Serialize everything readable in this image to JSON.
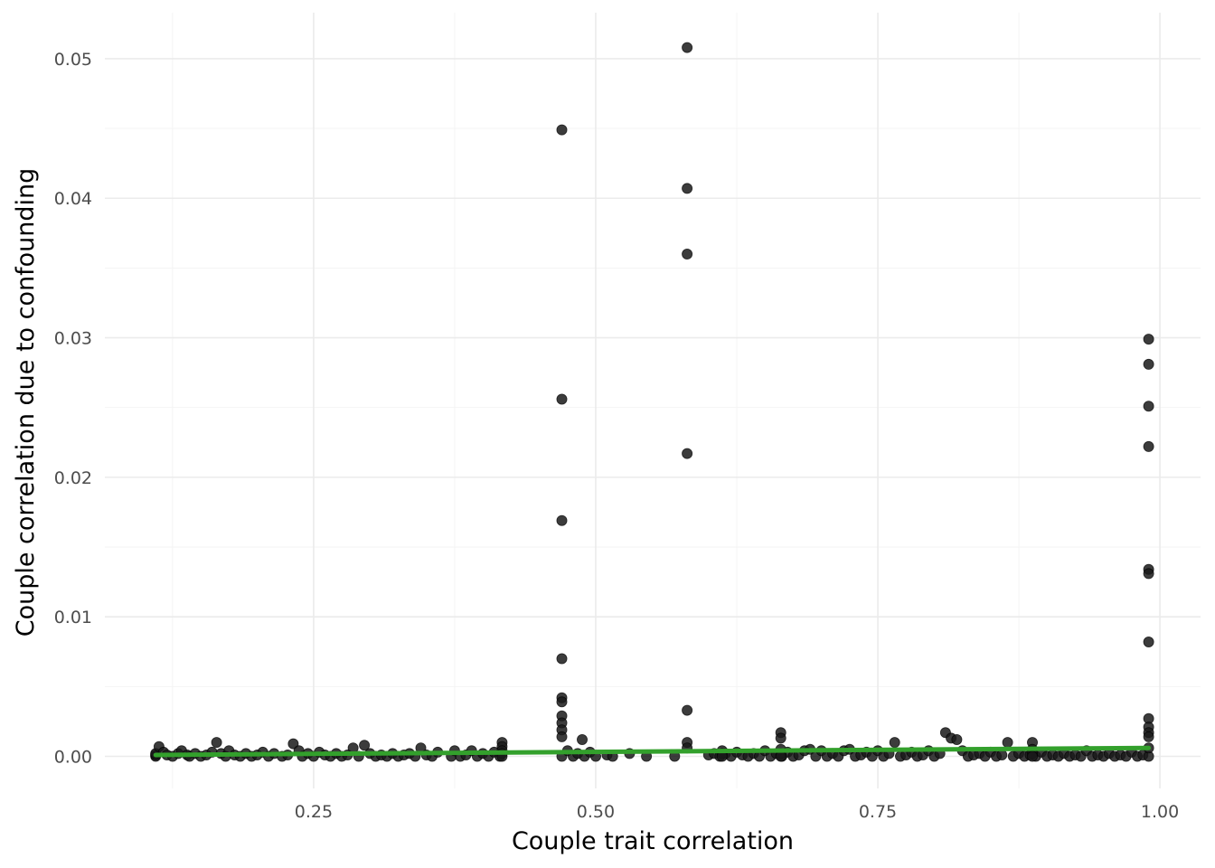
{
  "chart_data": {
    "type": "scatter",
    "xlabel": "Couple trait correlation",
    "ylabel": "Couple correlation due to confounding",
    "xlim": [
      0.065,
      1.036
    ],
    "ylim": [
      -0.0023,
      0.0533
    ],
    "x_ticks": [
      0.25,
      0.5,
      0.75,
      1.0
    ],
    "x_tick_labels": [
      "0.25",
      "0.50",
      "0.75",
      "1.00"
    ],
    "x_minor_ticks": [
      0.125,
      0.375,
      0.625,
      0.875
    ],
    "y_ticks": [
      0,
      0.01,
      0.02,
      0.03,
      0.04,
      0.05
    ],
    "y_tick_labels": [
      "0.00",
      "0.01",
      "0.02",
      "0.03",
      "0.04",
      "0.05"
    ],
    "y_minor_ticks": [
      0.005,
      0.015,
      0.025,
      0.035,
      0.045
    ],
    "grid": true,
    "legend": "none",
    "point_color": "#1a1a1a",
    "fit_line": {
      "color": "#33a02c",
      "x": [
        0.11,
        0.99
      ],
      "y": [
        0.0001,
        0.0006
      ]
    },
    "points": [
      [
        0.11,
        0.0
      ],
      [
        0.11,
        0.0001
      ],
      [
        0.11,
        0.0002
      ],
      [
        0.113,
        0.0007
      ],
      [
        0.117,
        0.0003
      ],
      [
        0.12,
        0.0001
      ],
      [
        0.125,
        0.0
      ],
      [
        0.13,
        0.0002
      ],
      [
        0.133,
        0.0004
      ],
      [
        0.138,
        0.0001
      ],
      [
        0.14,
        0.0
      ],
      [
        0.145,
        0.0002
      ],
      [
        0.15,
        0.0
      ],
      [
        0.155,
        0.0001
      ],
      [
        0.16,
        0.0003
      ],
      [
        0.164,
        0.001
      ],
      [
        0.168,
        0.0002
      ],
      [
        0.172,
        0.0
      ],
      [
        0.175,
        0.0004
      ],
      [
        0.18,
        0.0001
      ],
      [
        0.185,
        0.0
      ],
      [
        0.19,
        0.0002
      ],
      [
        0.195,
        0.0
      ],
      [
        0.2,
        0.0001
      ],
      [
        0.205,
        0.0003
      ],
      [
        0.21,
        0.0
      ],
      [
        0.215,
        0.0002
      ],
      [
        0.222,
        0.0
      ],
      [
        0.227,
        0.0001
      ],
      [
        0.232,
        0.0009
      ],
      [
        0.237,
        0.0004
      ],
      [
        0.24,
        0.0
      ],
      [
        0.245,
        0.0002
      ],
      [
        0.25,
        0.0
      ],
      [
        0.255,
        0.0003
      ],
      [
        0.26,
        0.0001
      ],
      [
        0.265,
        0.0
      ],
      [
        0.27,
        0.0002
      ],
      [
        0.275,
        0.0
      ],
      [
        0.28,
        0.0001
      ],
      [
        0.285,
        0.0006
      ],
      [
        0.29,
        0.0
      ],
      [
        0.295,
        0.0008
      ],
      [
        0.3,
        0.0002
      ],
      [
        0.305,
        0.0
      ],
      [
        0.31,
        0.0001
      ],
      [
        0.315,
        0.0
      ],
      [
        0.32,
        0.0002
      ],
      [
        0.325,
        0.0
      ],
      [
        0.33,
        0.0001
      ],
      [
        0.335,
        0.0002
      ],
      [
        0.34,
        0.0
      ],
      [
        0.345,
        0.0006
      ],
      [
        0.35,
        0.0001
      ],
      [
        0.355,
        0.0
      ],
      [
        0.36,
        0.0003
      ],
      [
        0.372,
        0.0
      ],
      [
        0.375,
        0.0004
      ],
      [
        0.38,
        0.0
      ],
      [
        0.385,
        0.0001
      ],
      [
        0.39,
        0.0004
      ],
      [
        0.395,
        0.0
      ],
      [
        0.4,
        0.0002
      ],
      [
        0.405,
        0.0
      ],
      [
        0.41,
        0.0003
      ],
      [
        0.415,
        0.0
      ],
      [
        0.417,
        0.001
      ],
      [
        0.417,
        0.0007
      ],
      [
        0.417,
        0.0004
      ],
      [
        0.417,
        0.0002
      ],
      [
        0.417,
        0.0
      ],
      [
        0.47,
        0.0
      ],
      [
        0.475,
        0.0004
      ],
      [
        0.48,
        0.0
      ],
      [
        0.484,
        0.0002
      ],
      [
        0.488,
        0.0012
      ],
      [
        0.49,
        0.0
      ],
      [
        0.495,
        0.0003
      ],
      [
        0.5,
        0.0
      ],
      [
        0.51,
        0.0001
      ],
      [
        0.515,
        0.0
      ],
      [
        0.53,
        0.0002
      ],
      [
        0.545,
        0.0
      ],
      [
        0.57,
        0.0
      ],
      [
        0.6,
        0.0001
      ],
      [
        0.605,
        0.0002
      ],
      [
        0.61,
        0.0
      ],
      [
        0.615,
        0.0002
      ],
      [
        0.62,
        0.0
      ],
      [
        0.625,
        0.0003
      ],
      [
        0.63,
        0.0001
      ],
      [
        0.635,
        0.0
      ],
      [
        0.64,
        0.0002
      ],
      [
        0.645,
        0.0
      ],
      [
        0.65,
        0.0004
      ],
      [
        0.655,
        0.0
      ],
      [
        0.66,
        0.0002
      ],
      [
        0.665,
        0.0
      ],
      [
        0.67,
        0.0003
      ],
      [
        0.675,
        0.0
      ],
      [
        0.68,
        0.0001
      ],
      [
        0.685,
        0.0004
      ],
      [
        0.69,
        0.0005
      ],
      [
        0.695,
        0.0
      ],
      [
        0.7,
        0.0004
      ],
      [
        0.705,
        0.0
      ],
      [
        0.71,
        0.0002
      ],
      [
        0.715,
        0.0
      ],
      [
        0.72,
        0.0004
      ],
      [
        0.725,
        0.0005
      ],
      [
        0.73,
        0.0
      ],
      [
        0.735,
        0.0001
      ],
      [
        0.74,
        0.0003
      ],
      [
        0.745,
        0.0
      ],
      [
        0.75,
        0.0004
      ],
      [
        0.755,
        0.0
      ],
      [
        0.76,
        0.0002
      ],
      [
        0.765,
        0.001
      ],
      [
        0.77,
        0.0
      ],
      [
        0.775,
        0.0001
      ],
      [
        0.78,
        0.0003
      ],
      [
        0.785,
        0.0
      ],
      [
        0.79,
        0.0001
      ],
      [
        0.795,
        0.0004
      ],
      [
        0.8,
        0.0
      ],
      [
        0.805,
        0.0002
      ],
      [
        0.81,
        0.0017
      ],
      [
        0.815,
        0.0013
      ],
      [
        0.82,
        0.0012
      ],
      [
        0.825,
        0.0004
      ],
      [
        0.83,
        0.0
      ],
      [
        0.835,
        0.0001
      ],
      [
        0.84,
        0.0002
      ],
      [
        0.845,
        0.0
      ],
      [
        0.85,
        0.0003
      ],
      [
        0.855,
        0.0
      ],
      [
        0.86,
        0.0001
      ],
      [
        0.865,
        0.001
      ],
      [
        0.87,
        0.0
      ],
      [
        0.875,
        0.0002
      ],
      [
        0.88,
        0.0
      ],
      [
        0.885,
        0.0001
      ],
      [
        0.89,
        0.0
      ],
      [
        0.895,
        0.0003
      ],
      [
        0.9,
        0.0
      ],
      [
        0.905,
        0.0001
      ],
      [
        0.91,
        0.0
      ],
      [
        0.915,
        0.0002
      ],
      [
        0.92,
        0.0
      ],
      [
        0.925,
        0.0001
      ],
      [
        0.93,
        0.0
      ],
      [
        0.935,
        0.0004
      ],
      [
        0.94,
        0.0
      ],
      [
        0.945,
        0.0001
      ],
      [
        0.95,
        0.0
      ],
      [
        0.955,
        0.0002
      ],
      [
        0.96,
        0.0
      ],
      [
        0.965,
        0.0001
      ],
      [
        0.97,
        0.0
      ],
      [
        0.975,
        0.0003
      ],
      [
        0.98,
        0.0
      ],
      [
        0.985,
        0.0001
      ],
      [
        0.99,
        0.0
      ],
      [
        0.47,
        0.0449
      ],
      [
        0.47,
        0.0256
      ],
      [
        0.47,
        0.0169
      ],
      [
        0.47,
        0.007
      ],
      [
        0.47,
        0.0042
      ],
      [
        0.47,
        0.0039
      ],
      [
        0.47,
        0.0029
      ],
      [
        0.47,
        0.0024
      ],
      [
        0.47,
        0.0019
      ],
      [
        0.47,
        0.0014
      ],
      [
        0.581,
        0.0508
      ],
      [
        0.581,
        0.0407
      ],
      [
        0.581,
        0.036
      ],
      [
        0.581,
        0.0217
      ],
      [
        0.581,
        0.0033
      ],
      [
        0.581,
        0.001
      ],
      [
        0.581,
        0.0006
      ],
      [
        0.99,
        0.0299
      ],
      [
        0.99,
        0.0281
      ],
      [
        0.99,
        0.0251
      ],
      [
        0.99,
        0.0222
      ],
      [
        0.99,
        0.0134
      ],
      [
        0.99,
        0.0131
      ],
      [
        0.99,
        0.0082
      ],
      [
        0.99,
        0.0027
      ],
      [
        0.99,
        0.0021
      ],
      [
        0.99,
        0.0017
      ],
      [
        0.99,
        0.0014
      ],
      [
        0.99,
        0.0006
      ],
      [
        0.887,
        0.001
      ],
      [
        0.887,
        0.0005
      ],
      [
        0.887,
        0.0002
      ],
      [
        0.887,
        0.0
      ],
      [
        0.664,
        0.0017
      ],
      [
        0.664,
        0.0013
      ],
      [
        0.664,
        0.0005
      ],
      [
        0.664,
        0.0002
      ],
      [
        0.664,
        0.0
      ],
      [
        0.612,
        0.0004
      ],
      [
        0.612,
        0.0002
      ],
      [
        0.612,
        0.0
      ]
    ]
  }
}
